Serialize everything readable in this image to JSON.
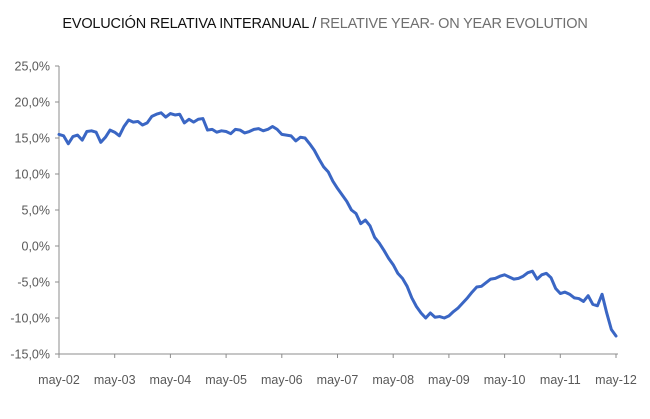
{
  "title": {
    "es": "EVOLUCIÓN RELATIVA INTERANUAL",
    "separator": " / ",
    "en": "RELATIVE YEAR- ON YEAR EVOLUTION"
  },
  "chart_data": {
    "type": "line",
    "title": "EVOLUCIÓN RELATIVA INTERANUAL / RELATIVE YEAR- ON YEAR EVOLUTION",
    "xlabel": "",
    "ylabel": "",
    "grid": false,
    "ylim": [
      -15,
      25
    ],
    "y_ticks": [
      25,
      20,
      15,
      10,
      5,
      0,
      -5,
      -10,
      -15
    ],
    "y_tick_labels": [
      "25,0%",
      "20,0%",
      "15,0%",
      "10,0%",
      "5,0%",
      "0,0%",
      "-5,0%",
      "-10,0%",
      "-15,0%"
    ],
    "x_tick_labels": [
      "may-02",
      "may-03",
      "may-04",
      "may-05",
      "may-06",
      "may-07",
      "may-08",
      "may-09",
      "may-10",
      "may-11",
      "may-12"
    ],
    "line_color": "#3a66c4",
    "series": [
      {
        "name": "",
        "x": [
          "may-02",
          "jun-02",
          "jul-02",
          "ago-02",
          "sep-02",
          "oct-02",
          "nov-02",
          "dic-02",
          "ene-03",
          "feb-03",
          "mar-03",
          "abr-03",
          "may-03",
          "jun-03",
          "jul-03",
          "ago-03",
          "sep-03",
          "oct-03",
          "nov-03",
          "dic-03",
          "ene-04",
          "feb-04",
          "mar-04",
          "abr-04",
          "may-04",
          "jun-04",
          "jul-04",
          "ago-04",
          "sep-04",
          "oct-04",
          "nov-04",
          "dic-04",
          "ene-05",
          "feb-05",
          "mar-05",
          "abr-05",
          "may-05",
          "jun-05",
          "jul-05",
          "ago-05",
          "sep-05",
          "oct-05",
          "nov-05",
          "dic-05",
          "ene-06",
          "feb-06",
          "mar-06",
          "abr-06",
          "may-06",
          "jun-06",
          "jul-06",
          "ago-06",
          "sep-06",
          "oct-06",
          "nov-06",
          "dic-06",
          "ene-07",
          "feb-07",
          "mar-07",
          "abr-07",
          "may-07",
          "jun-07",
          "jul-07",
          "ago-07",
          "sep-07",
          "oct-07",
          "nov-07",
          "dic-07",
          "ene-08",
          "feb-08",
          "mar-08",
          "abr-08",
          "may-08",
          "jun-08",
          "jul-08",
          "ago-08",
          "sep-08",
          "oct-08",
          "nov-08",
          "dic-08",
          "ene-09",
          "feb-09",
          "mar-09",
          "abr-09",
          "may-09",
          "jun-09",
          "jul-09",
          "ago-09",
          "sep-09",
          "oct-09",
          "nov-09",
          "dic-09",
          "ene-10",
          "feb-10",
          "mar-10",
          "abr-10",
          "may-10",
          "jun-10",
          "jul-10",
          "ago-10",
          "sep-10",
          "oct-10",
          "nov-10",
          "dic-10",
          "ene-11",
          "feb-11",
          "mar-11",
          "abr-11",
          "may-11",
          "jun-11",
          "jul-11",
          "ago-11",
          "sep-11",
          "oct-11",
          "nov-11",
          "dic-11",
          "ene-12",
          "feb-12",
          "mar-12",
          "abr-12",
          "may-12"
        ],
        "values": [
          15.5,
          15.3,
          14.2,
          15.2,
          15.4,
          14.7,
          15.9,
          16.0,
          15.8,
          14.4,
          15.1,
          16.1,
          15.8,
          15.3,
          16.6,
          17.5,
          17.2,
          17.3,
          16.8,
          17.1,
          18.0,
          18.3,
          18.5,
          17.9,
          18.4,
          18.2,
          18.3,
          17.1,
          17.6,
          17.2,
          17.6,
          17.7,
          16.1,
          16.2,
          15.8,
          16.0,
          15.9,
          15.6,
          16.2,
          16.1,
          15.7,
          15.9,
          16.2,
          16.3,
          16.0,
          16.2,
          16.6,
          16.2,
          15.5,
          15.4,
          15.3,
          14.6,
          15.1,
          15.0,
          14.2,
          13.3,
          12.1,
          11.0,
          10.3,
          9.0,
          8.0,
          7.1,
          6.2,
          5.0,
          4.5,
          3.1,
          3.6,
          2.8,
          1.2,
          0.4,
          -0.6,
          -1.7,
          -2.6,
          -3.8,
          -4.5,
          -5.6,
          -7.2,
          -8.4,
          -9.3,
          -10.0,
          -9.3,
          -9.9,
          -9.8,
          -10.0,
          -9.7,
          -9.1,
          -8.6,
          -7.9,
          -7.2,
          -6.4,
          -5.7,
          -5.6,
          -5.1,
          -4.6,
          -4.5,
          -4.2,
          -4.0,
          -4.3,
          -4.6,
          -4.5,
          -4.2,
          -3.7,
          -3.5,
          -4.6,
          -4.0,
          -3.8,
          -4.4,
          -5.9,
          -6.6,
          -6.4,
          -6.7,
          -7.2,
          -7.3,
          -7.7,
          -6.9,
          -8.1,
          -8.3,
          -6.7,
          -9.3,
          -11.6,
          -12.5
        ]
      }
    ]
  }
}
